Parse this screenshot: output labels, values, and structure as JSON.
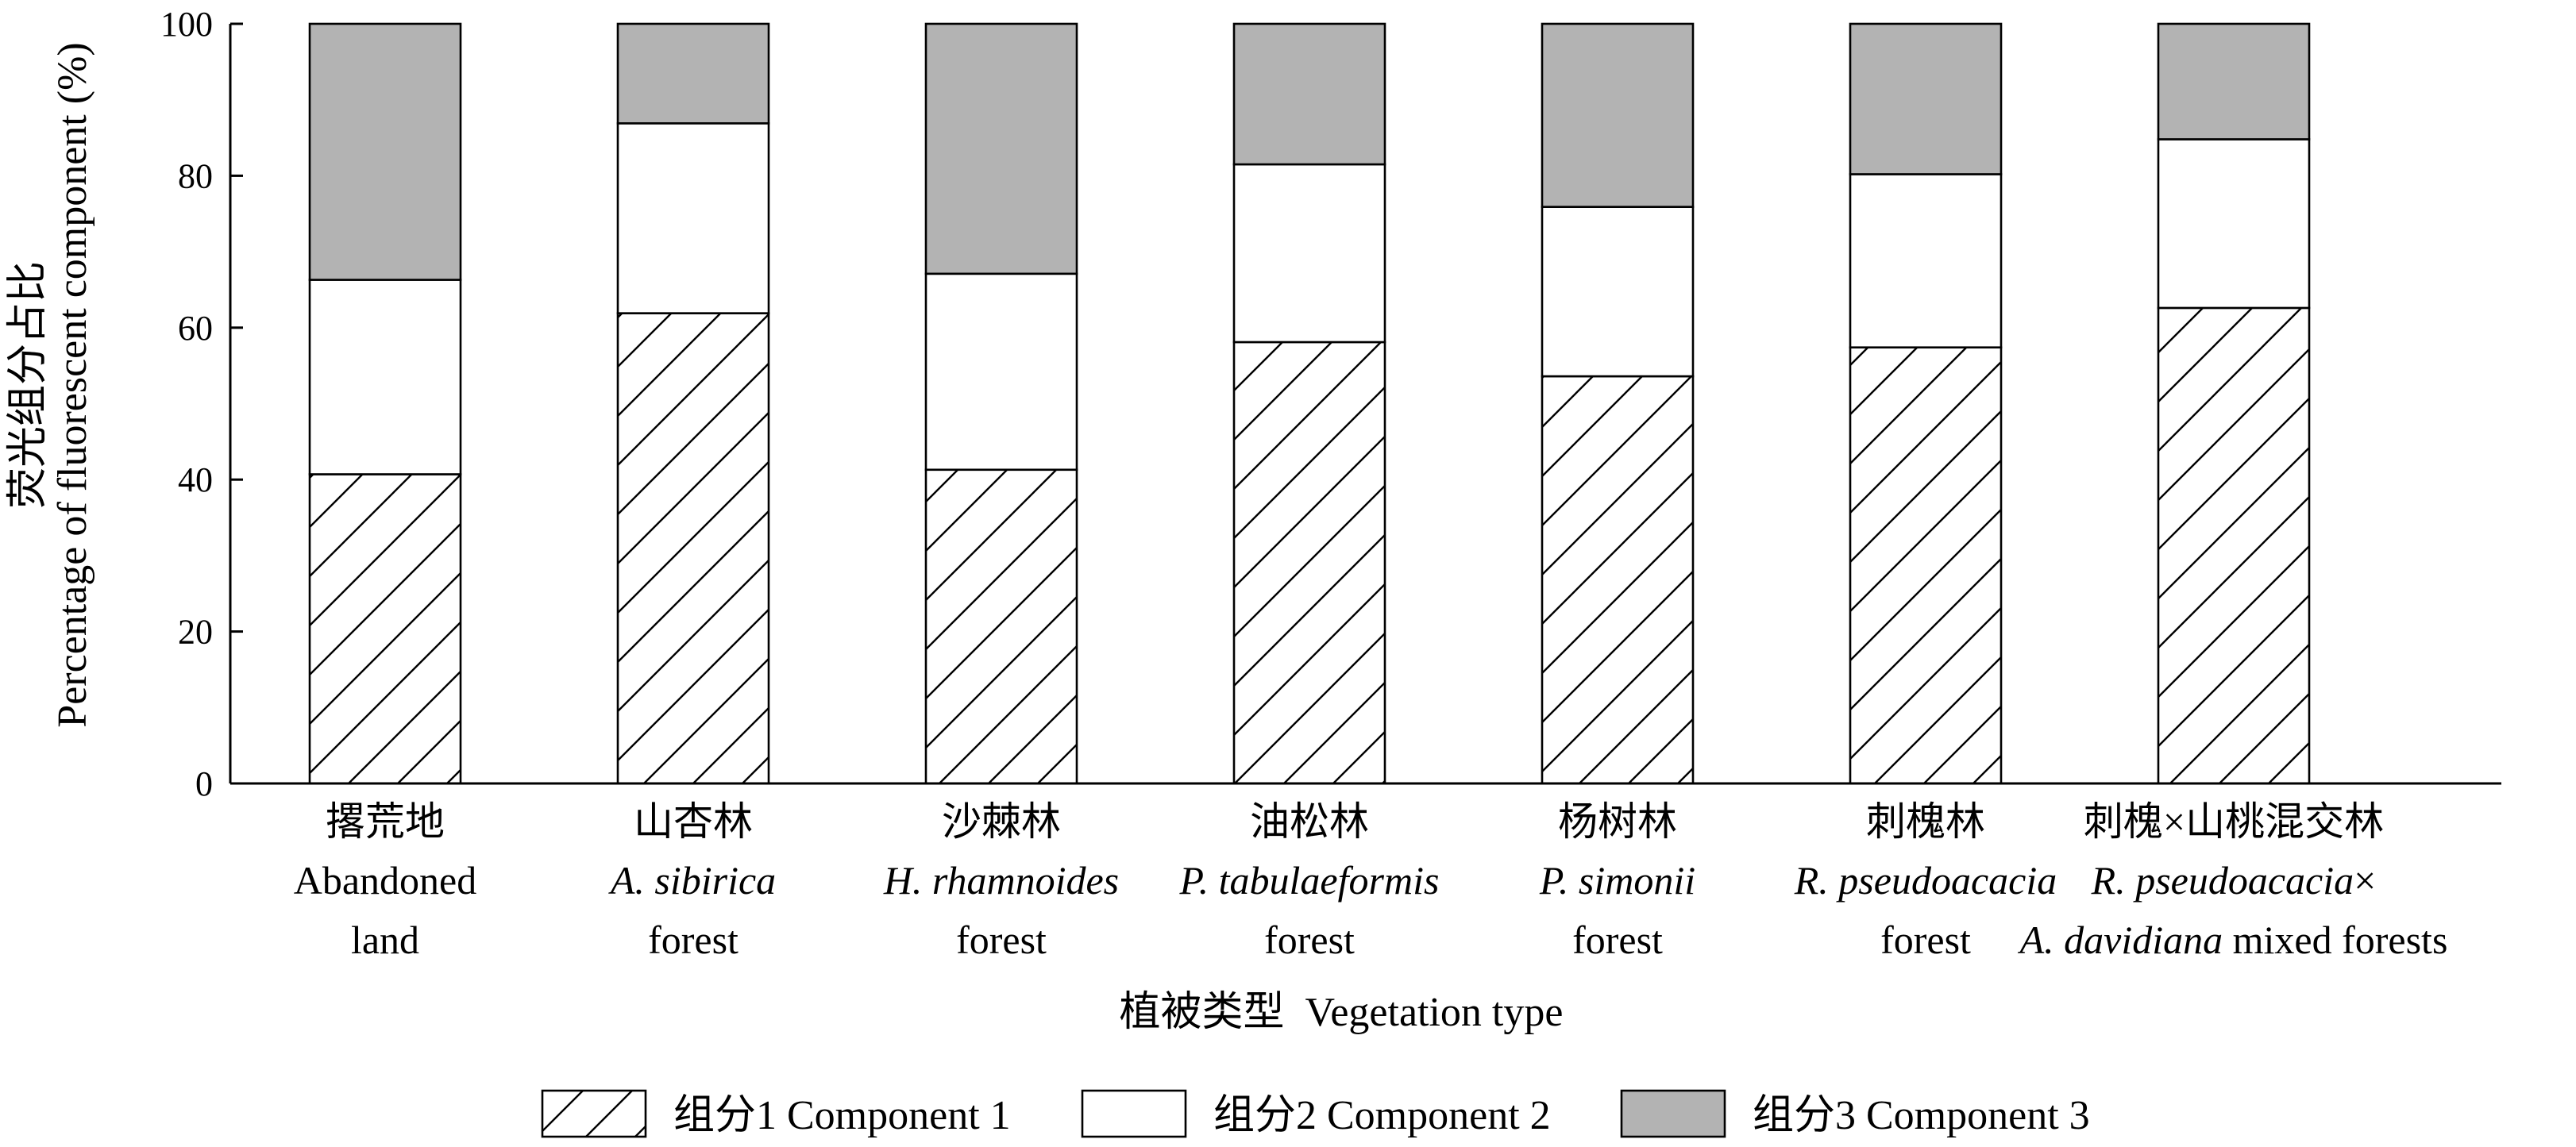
{
  "chart_data": {
    "type": "bar",
    "stacked": true,
    "xlabel": "植被类型  Vegetation type",
    "ylabel_line1": "荧光组分占比",
    "ylabel_line2": "Percentage of fluorescent component (%)",
    "ylim": [
      0,
      100
    ],
    "yticks": [
      "0",
      "20",
      "40",
      "60",
      "80",
      "100"
    ],
    "grid": false,
    "legend_position": "bottom",
    "categories": [
      {
        "zh": "撂荒地",
        "lines": [
          {
            "seg": [
              {
                "t": "Abandoned",
                "i": false
              }
            ]
          },
          {
            "seg": [
              {
                "t": "land",
                "i": false
              }
            ]
          }
        ]
      },
      {
        "zh": "山杏林",
        "lines": [
          {
            "seg": [
              {
                "t": "A. sibirica",
                "i": true
              }
            ]
          },
          {
            "seg": [
              {
                "t": "forest",
                "i": false
              }
            ]
          }
        ]
      },
      {
        "zh": "沙棘林",
        "lines": [
          {
            "seg": [
              {
                "t": "H. rhamnoides",
                "i": true
              }
            ]
          },
          {
            "seg": [
              {
                "t": "forest",
                "i": false
              }
            ]
          }
        ]
      },
      {
        "zh": "油松林",
        "lines": [
          {
            "seg": [
              {
                "t": "P. tabulaeformis",
                "i": true
              }
            ]
          },
          {
            "seg": [
              {
                "t": "forest",
                "i": false
              }
            ]
          }
        ]
      },
      {
        "zh": "杨树林",
        "lines": [
          {
            "seg": [
              {
                "t": "P. simonii",
                "i": true
              }
            ]
          },
          {
            "seg": [
              {
                "t": "forest",
                "i": false
              }
            ]
          }
        ]
      },
      {
        "zh": "刺槐林",
        "lines": [
          {
            "seg": [
              {
                "t": "R. pseudoacacia",
                "i": true
              }
            ]
          },
          {
            "seg": [
              {
                "t": "forest",
                "i": false
              }
            ]
          }
        ]
      },
      {
        "zh": "刺槐×山桃混交林",
        "lines": [
          {
            "seg": [
              {
                "t": "R. pseudoacacia",
                "i": true
              },
              {
                "t": "×",
                "i": false
              }
            ]
          },
          {
            "seg": [
              {
                "t": "A. davidiana",
                "i": true
              },
              {
                "t": " mixed forests",
                "i": false
              }
            ]
          }
        ]
      }
    ],
    "series": [
      {
        "name": "组分1 Component 1",
        "style": "hatch",
        "values": [
          40.7,
          61.9,
          41.3,
          58.1,
          53.6,
          57.4,
          62.6
        ]
      },
      {
        "name": "组分2 Component 2",
        "style": "white",
        "values": [
          25.6,
          25.0,
          25.8,
          23.4,
          22.3,
          22.8,
          22.2
        ]
      },
      {
        "name": "组分3 Component 3",
        "style": "gray",
        "values": [
          33.7,
          13.1,
          32.9,
          18.5,
          24.1,
          19.8,
          15.2
        ]
      }
    ],
    "colors": {
      "gray": "#b3b3b3",
      "white": "#ffffff",
      "line": "#000000"
    }
  }
}
